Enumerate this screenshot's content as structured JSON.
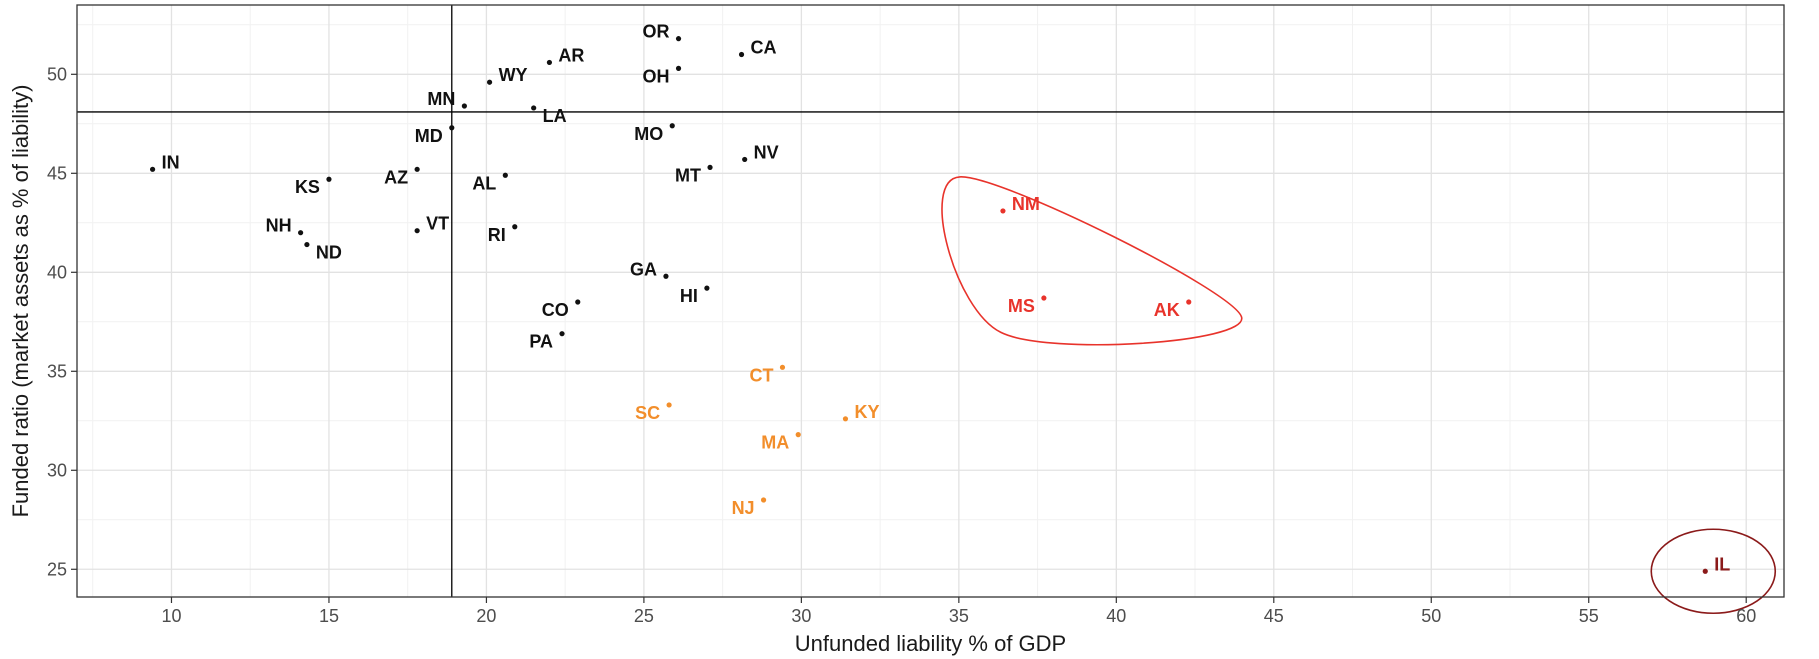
{
  "chart_data": {
    "type": "scatter",
    "title": "",
    "xlabel": "Unfunded liability % of GDP",
    "ylabel": "Funded ratio (market assets as % of liability)",
    "xlim": [
      7.0,
      61.2
    ],
    "ylim": [
      23.6,
      53.5
    ],
    "x_ticks": [
      10,
      15,
      20,
      25,
      30,
      35,
      40,
      45,
      50,
      55,
      60
    ],
    "y_ticks": [
      25,
      30,
      35,
      40,
      45,
      50
    ],
    "grid": true,
    "legend": "none",
    "reference_lines": {
      "x": 18.9,
      "y": 48.1
    },
    "colors": {
      "group1": "#111111",
      "group2": "#f28e2b",
      "group3": "#e8332b",
      "group4": "#8b1a1a",
      "grid_major": "#e2e2e2",
      "grid_minor": "#f1f1f1",
      "panel_border": "#333333"
    },
    "points": [
      {
        "label": "IN",
        "x": 9.4,
        "y": 45.2,
        "group": "group1",
        "label_pos": "right"
      },
      {
        "label": "KS",
        "x": 15.0,
        "y": 44.7,
        "group": "group1",
        "label_pos": "below-left"
      },
      {
        "label": "NH",
        "x": 14.1,
        "y": 42.0,
        "group": "group1",
        "label_pos": "left"
      },
      {
        "label": "ND",
        "x": 14.3,
        "y": 41.4,
        "group": "group1",
        "label_pos": "below-right"
      },
      {
        "label": "AZ",
        "x": 17.8,
        "y": 45.2,
        "group": "group1",
        "label_pos": "below-left"
      },
      {
        "label": "VT",
        "x": 17.8,
        "y": 42.1,
        "group": "group1",
        "label_pos": "right"
      },
      {
        "label": "MD",
        "x": 18.9,
        "y": 47.3,
        "group": "group1",
        "label_pos": "below-left"
      },
      {
        "label": "MN",
        "x": 19.3,
        "y": 48.4,
        "group": "group1",
        "label_pos": "left"
      },
      {
        "label": "WY",
        "x": 20.1,
        "y": 49.6,
        "group": "group1",
        "label_pos": "right"
      },
      {
        "label": "AL",
        "x": 20.6,
        "y": 44.9,
        "group": "group1",
        "label_pos": "below-left"
      },
      {
        "label": "RI",
        "x": 20.9,
        "y": 42.3,
        "group": "group1",
        "label_pos": "below-left"
      },
      {
        "label": "LA",
        "x": 21.5,
        "y": 48.3,
        "group": "group1",
        "label_pos": "below-right"
      },
      {
        "label": "AR",
        "x": 22.0,
        "y": 50.6,
        "group": "group1",
        "label_pos": "right"
      },
      {
        "label": "CO",
        "x": 22.9,
        "y": 38.5,
        "group": "group1",
        "label_pos": "below-left"
      },
      {
        "label": "PA",
        "x": 22.4,
        "y": 36.9,
        "group": "group1",
        "label_pos": "below-left"
      },
      {
        "label": "GA",
        "x": 25.7,
        "y": 39.8,
        "group": "group1",
        "label_pos": "left"
      },
      {
        "label": "HI",
        "x": 27.0,
        "y": 39.2,
        "group": "group1",
        "label_pos": "below-left"
      },
      {
        "label": "MO",
        "x": 25.9,
        "y": 47.4,
        "group": "group1",
        "label_pos": "below-left"
      },
      {
        "label": "MT",
        "x": 27.1,
        "y": 45.3,
        "group": "group1",
        "label_pos": "below-left"
      },
      {
        "label": "NV",
        "x": 28.2,
        "y": 45.7,
        "group": "group1",
        "label_pos": "right"
      },
      {
        "label": "OR",
        "x": 26.1,
        "y": 51.8,
        "group": "group1",
        "label_pos": "left"
      },
      {
        "label": "OH",
        "x": 26.1,
        "y": 50.3,
        "group": "group1",
        "label_pos": "below-left"
      },
      {
        "label": "CA",
        "x": 28.1,
        "y": 51.0,
        "group": "group1",
        "label_pos": "right"
      },
      {
        "label": "CT",
        "x": 29.4,
        "y": 35.2,
        "group": "group2",
        "label_pos": "below-left"
      },
      {
        "label": "SC",
        "x": 25.8,
        "y": 33.3,
        "group": "group2",
        "label_pos": "below-left"
      },
      {
        "label": "KY",
        "x": 31.4,
        "y": 32.6,
        "group": "group2",
        "label_pos": "right"
      },
      {
        "label": "MA",
        "x": 29.9,
        "y": 31.8,
        "group": "group2",
        "label_pos": "below-left"
      },
      {
        "label": "NJ",
        "x": 28.8,
        "y": 28.5,
        "group": "group2",
        "label_pos": "below-left"
      },
      {
        "label": "NM",
        "x": 36.4,
        "y": 43.1,
        "group": "group3",
        "label_pos": "right"
      },
      {
        "label": "MS",
        "x": 37.7,
        "y": 38.7,
        "group": "group3",
        "label_pos": "below-left"
      },
      {
        "label": "AK",
        "x": 42.3,
        "y": 38.5,
        "group": "group3",
        "label_pos": "below-left"
      },
      {
        "label": "IL",
        "x": 58.7,
        "y": 24.9,
        "group": "group4",
        "label_pos": "right"
      }
    ],
    "ellipses": [
      {
        "group": "group3"
      },
      {
        "group": "group4"
      }
    ]
  }
}
